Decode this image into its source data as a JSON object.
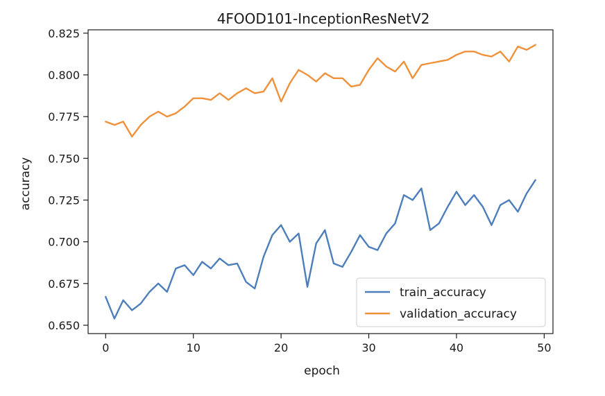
{
  "chart_data": {
    "type": "line",
    "title": "4FOOD101-InceptionResNetV2",
    "xlabel": "epoch",
    "ylabel": "accuracy",
    "xlim": [
      -2,
      51
    ],
    "ylim": [
      0.645,
      0.827
    ],
    "xticks": [
      0,
      10,
      20,
      30,
      40,
      50
    ],
    "xtick_labels": [
      "0",
      "10",
      "20",
      "30",
      "40",
      "50"
    ],
    "yticks": [
      0.65,
      0.675,
      0.7,
      0.725,
      0.75,
      0.775,
      0.8,
      0.825
    ],
    "ytick_labels": [
      "0.650",
      "0.675",
      "0.700",
      "0.725",
      "0.750",
      "0.775",
      "0.800",
      "0.825"
    ],
    "grid": false,
    "legend_position": "bottom-right",
    "x": [
      0,
      1,
      2,
      3,
      4,
      5,
      6,
      7,
      8,
      9,
      10,
      11,
      12,
      13,
      14,
      15,
      16,
      17,
      18,
      19,
      20,
      21,
      22,
      23,
      24,
      25,
      26,
      27,
      28,
      29,
      30,
      31,
      32,
      33,
      34,
      35,
      36,
      37,
      38,
      39,
      40,
      41,
      42,
      43,
      44,
      45,
      46,
      47,
      48,
      49
    ],
    "series": [
      {
        "name": "train_accuracy",
        "color": "#4c7ebb",
        "values": [
          0.667,
          0.654,
          0.665,
          0.659,
          0.663,
          0.67,
          0.675,
          0.67,
          0.684,
          0.686,
          0.68,
          0.688,
          0.684,
          0.69,
          0.686,
          0.687,
          0.676,
          0.672,
          0.691,
          0.704,
          0.71,
          0.7,
          0.705,
          0.673,
          0.699,
          0.707,
          0.687,
          0.685,
          0.694,
          0.704,
          0.697,
          0.695,
          0.705,
          0.711,
          0.728,
          0.725,
          0.732,
          0.707,
          0.711,
          0.721,
          0.73,
          0.722,
          0.728,
          0.721,
          0.71,
          0.722,
          0.725,
          0.718,
          0.729,
          0.737
        ]
      },
      {
        "name": "validation_accuracy",
        "color": "#f0913a",
        "values": [
          0.772,
          0.77,
          0.772,
          0.763,
          0.77,
          0.775,
          0.778,
          0.775,
          0.777,
          0.781,
          0.786,
          0.786,
          0.785,
          0.789,
          0.785,
          0.789,
          0.792,
          0.789,
          0.79,
          0.798,
          0.784,
          0.795,
          0.803,
          0.8,
          0.796,
          0.801,
          0.798,
          0.798,
          0.793,
          0.794,
          0.803,
          0.81,
          0.805,
          0.802,
          0.808,
          0.798,
          0.806,
          0.807,
          0.808,
          0.809,
          0.812,
          0.814,
          0.814,
          0.812,
          0.811,
          0.814,
          0.808,
          0.817,
          0.815,
          0.818
        ]
      }
    ]
  }
}
